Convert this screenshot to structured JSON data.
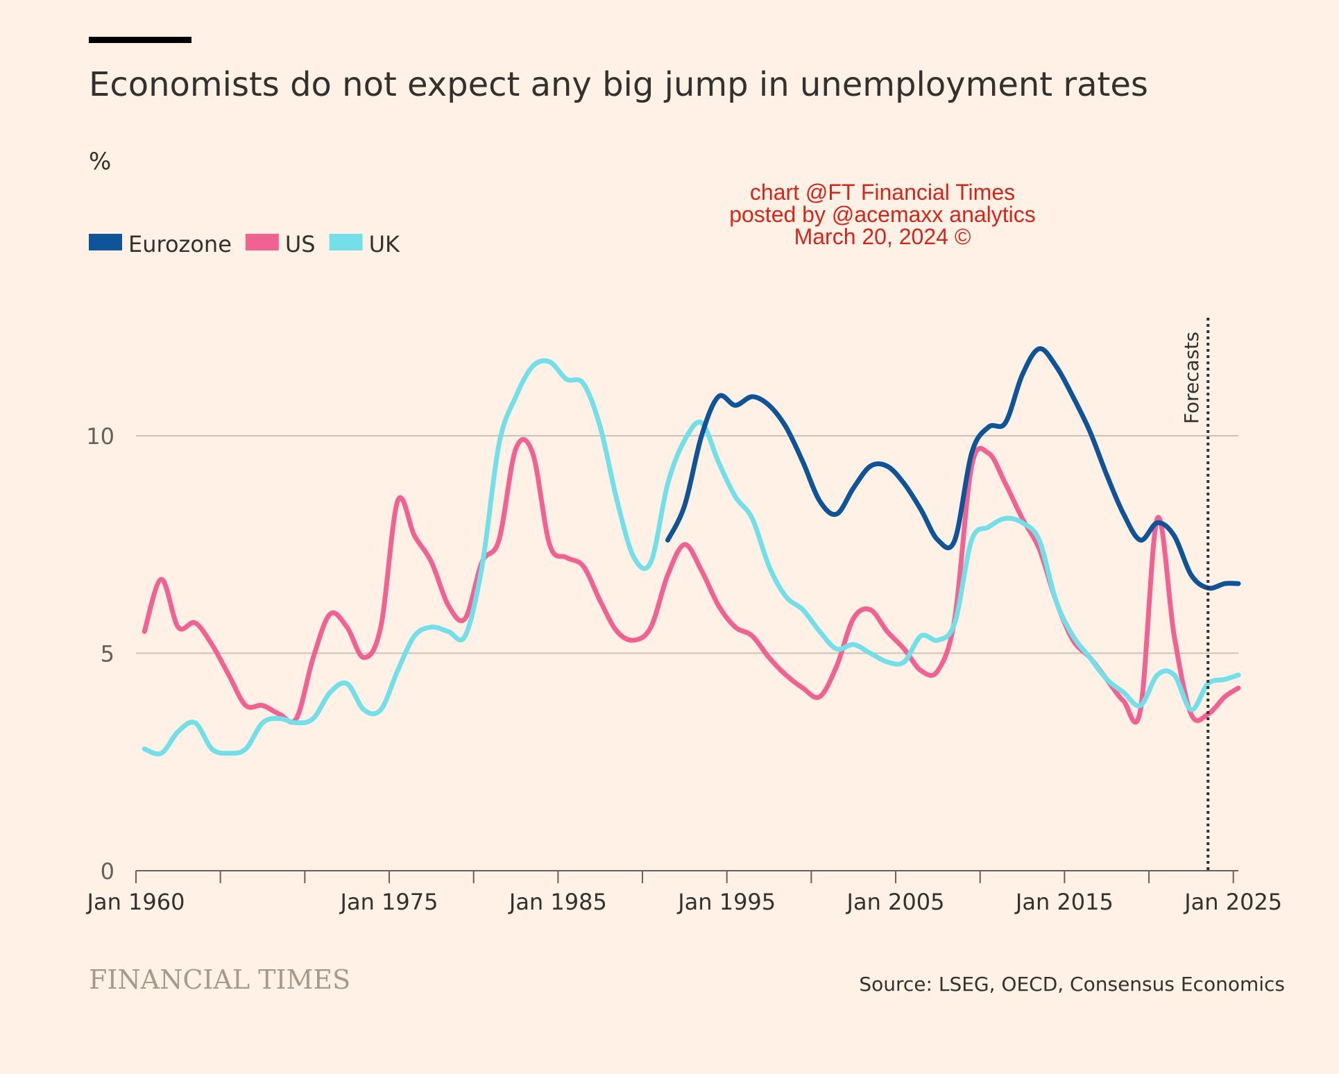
{
  "header": {
    "title": "Economists do not expect any big jump in unemployment rates",
    "unit": "%"
  },
  "watermark": {
    "lines": [
      "chart @FT Financial Times",
      "posted by @acemaxx analytics",
      "March 20, 2024 ©"
    ],
    "color": "#d2261a"
  },
  "footer": {
    "brand": "FINANCIAL TIMES",
    "source": "Source: LSEG, OECD, Consensus Economics"
  },
  "chart_data": {
    "type": "line",
    "title": "Economists do not expect any big jump in unemployment rates",
    "ylabel": "%",
    "xlabel": "",
    "xlim": [
      1960,
      2025.3
    ],
    "ylim": [
      0,
      13
    ],
    "yticks": [
      0,
      5,
      10
    ],
    "xtick_labels": [
      {
        "x": 1960,
        "label": "Jan 1960"
      },
      {
        "x": 1975,
        "label": "Jan 1975"
      },
      {
        "x": 1985,
        "label": "Jan 1985"
      },
      {
        "x": 1995,
        "label": "Jan 1995"
      },
      {
        "x": 2005,
        "label": "Jan 2005"
      },
      {
        "x": 2015,
        "label": "Jan 2015"
      },
      {
        "x": 2025,
        "label": "Jan 2025"
      }
    ],
    "xtick_marks": [
      1960,
      1965,
      1970,
      1975,
      1980,
      1985,
      1990,
      1995,
      2000,
      2005,
      2010,
      2015,
      2020,
      2025
    ],
    "grid": true,
    "legend": "top-left",
    "forecast_line": {
      "x": 2023.5,
      "label": "Forecasts"
    },
    "series": [
      {
        "name": "Eurozone",
        "color": "#0f5499",
        "points": [
          [
            1991.5,
            7.6
          ],
          [
            1992.5,
            8.4
          ],
          [
            1993.5,
            10.0
          ],
          [
            1994.5,
            10.9
          ],
          [
            1995.5,
            10.7
          ],
          [
            1996.5,
            10.9
          ],
          [
            1997.5,
            10.7
          ],
          [
            1998.5,
            10.2
          ],
          [
            1999.5,
            9.4
          ],
          [
            2000.5,
            8.5
          ],
          [
            2001.5,
            8.2
          ],
          [
            2002.5,
            8.8
          ],
          [
            2003.5,
            9.3
          ],
          [
            2004.5,
            9.3
          ],
          [
            2005.5,
            8.9
          ],
          [
            2006.5,
            8.3
          ],
          [
            2007.5,
            7.6
          ],
          [
            2008.5,
            7.6
          ],
          [
            2009.5,
            9.6
          ],
          [
            2010.5,
            10.2
          ],
          [
            2011.5,
            10.3
          ],
          [
            2012.5,
            11.4
          ],
          [
            2013.5,
            12.0
          ],
          [
            2014.5,
            11.6
          ],
          [
            2015.5,
            10.9
          ],
          [
            2016.5,
            10.1
          ],
          [
            2017.5,
            9.1
          ],
          [
            2018.5,
            8.2
          ],
          [
            2019.5,
            7.6
          ],
          [
            2020.5,
            8.0
          ],
          [
            2021.5,
            7.7
          ],
          [
            2022.5,
            6.8
          ],
          [
            2023.5,
            6.5
          ],
          [
            2024.5,
            6.6
          ],
          [
            2025.3,
            6.6
          ]
        ]
      },
      {
        "name": "US",
        "color": "#f06292",
        "points": [
          [
            1960.5,
            5.5
          ],
          [
            1961.5,
            6.7
          ],
          [
            1962.5,
            5.6
          ],
          [
            1963.5,
            5.7
          ],
          [
            1964.5,
            5.2
          ],
          [
            1965.5,
            4.5
          ],
          [
            1966.5,
            3.8
          ],
          [
            1967.5,
            3.8
          ],
          [
            1968.5,
            3.6
          ],
          [
            1969.5,
            3.5
          ],
          [
            1970.5,
            4.9
          ],
          [
            1971.5,
            5.9
          ],
          [
            1972.5,
            5.6
          ],
          [
            1973.5,
            4.9
          ],
          [
            1974.5,
            5.6
          ],
          [
            1975.5,
            8.5
          ],
          [
            1976.5,
            7.7
          ],
          [
            1977.5,
            7.1
          ],
          [
            1978.5,
            6.1
          ],
          [
            1979.5,
            5.8
          ],
          [
            1980.5,
            7.1
          ],
          [
            1981.5,
            7.6
          ],
          [
            1982.5,
            9.7
          ],
          [
            1983.5,
            9.6
          ],
          [
            1984.5,
            7.5
          ],
          [
            1985.5,
            7.2
          ],
          [
            1986.5,
            7.0
          ],
          [
            1987.5,
            6.2
          ],
          [
            1988.5,
            5.5
          ],
          [
            1989.5,
            5.3
          ],
          [
            1990.5,
            5.6
          ],
          [
            1991.5,
            6.8
          ],
          [
            1992.5,
            7.5
          ],
          [
            1993.5,
            6.9
          ],
          [
            1994.5,
            6.1
          ],
          [
            1995.5,
            5.6
          ],
          [
            1996.5,
            5.4
          ],
          [
            1997.5,
            4.9
          ],
          [
            1998.5,
            4.5
          ],
          [
            1999.5,
            4.2
          ],
          [
            2000.5,
            4.0
          ],
          [
            2001.5,
            4.7
          ],
          [
            2002.5,
            5.8
          ],
          [
            2003.5,
            6.0
          ],
          [
            2004.5,
            5.5
          ],
          [
            2005.5,
            5.1
          ],
          [
            2006.5,
            4.6
          ],
          [
            2007.5,
            4.6
          ],
          [
            2008.5,
            5.8
          ],
          [
            2009.5,
            9.3
          ],
          [
            2010.5,
            9.6
          ],
          [
            2011.5,
            8.9
          ],
          [
            2012.5,
            8.1
          ],
          [
            2013.5,
            7.4
          ],
          [
            2014.5,
            6.2
          ],
          [
            2015.5,
            5.3
          ],
          [
            2016.5,
            4.9
          ],
          [
            2017.5,
            4.4
          ],
          [
            2018.5,
            3.9
          ],
          [
            2019.5,
            3.7
          ],
          [
            2020.5,
            8.1
          ],
          [
            2021.5,
            5.4
          ],
          [
            2022.5,
            3.6
          ],
          [
            2023.5,
            3.6
          ],
          [
            2024.5,
            4.0
          ],
          [
            2025.3,
            4.2
          ]
        ]
      },
      {
        "name": "UK",
        "color": "#72dfe9",
        "points": [
          [
            1960.5,
            2.8
          ],
          [
            1961.5,
            2.7
          ],
          [
            1962.5,
            3.2
          ],
          [
            1963.5,
            3.4
          ],
          [
            1964.5,
            2.8
          ],
          [
            1965.5,
            2.7
          ],
          [
            1966.5,
            2.8
          ],
          [
            1967.5,
            3.4
          ],
          [
            1968.5,
            3.5
          ],
          [
            1969.5,
            3.4
          ],
          [
            1970.5,
            3.5
          ],
          [
            1971.5,
            4.1
          ],
          [
            1972.5,
            4.3
          ],
          [
            1973.5,
            3.7
          ],
          [
            1974.5,
            3.7
          ],
          [
            1975.5,
            4.6
          ],
          [
            1976.5,
            5.4
          ],
          [
            1977.5,
            5.6
          ],
          [
            1978.5,
            5.5
          ],
          [
            1979.5,
            5.4
          ],
          [
            1980.5,
            7.0
          ],
          [
            1981.5,
            9.8
          ],
          [
            1982.5,
            10.9
          ],
          [
            1983.5,
            11.6
          ],
          [
            1984.5,
            11.7
          ],
          [
            1985.5,
            11.3
          ],
          [
            1986.5,
            11.2
          ],
          [
            1987.5,
            10.2
          ],
          [
            1988.5,
            8.5
          ],
          [
            1989.5,
            7.2
          ],
          [
            1990.5,
            7.1
          ],
          [
            1991.5,
            8.9
          ],
          [
            1992.5,
            9.9
          ],
          [
            1993.5,
            10.3
          ],
          [
            1994.5,
            9.4
          ],
          [
            1995.5,
            8.6
          ],
          [
            1996.5,
            8.1
          ],
          [
            1997.5,
            7.0
          ],
          [
            1998.5,
            6.3
          ],
          [
            1999.5,
            6.0
          ],
          [
            2000.5,
            5.5
          ],
          [
            2001.5,
            5.1
          ],
          [
            2002.5,
            5.2
          ],
          [
            2003.5,
            5.0
          ],
          [
            2004.5,
            4.8
          ],
          [
            2005.5,
            4.8
          ],
          [
            2006.5,
            5.4
          ],
          [
            2007.5,
            5.3
          ],
          [
            2008.5,
            5.7
          ],
          [
            2009.5,
            7.6
          ],
          [
            2010.5,
            7.9
          ],
          [
            2011.5,
            8.1
          ],
          [
            2012.5,
            8.0
          ],
          [
            2013.5,
            7.6
          ],
          [
            2014.5,
            6.2
          ],
          [
            2015.5,
            5.4
          ],
          [
            2016.5,
            4.9
          ],
          [
            2017.5,
            4.4
          ],
          [
            2018.5,
            4.1
          ],
          [
            2019.5,
            3.8
          ],
          [
            2020.5,
            4.5
          ],
          [
            2021.5,
            4.5
          ],
          [
            2022.5,
            3.7
          ],
          [
            2023.5,
            4.3
          ],
          [
            2024.5,
            4.4
          ],
          [
            2025.3,
            4.5
          ]
        ]
      }
    ]
  }
}
